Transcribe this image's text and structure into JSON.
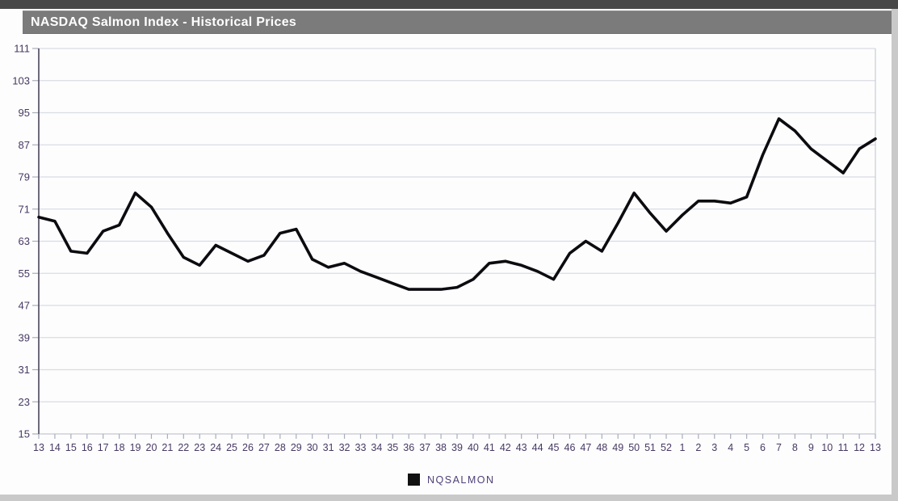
{
  "window": {
    "title": "NASDAQ Salmon Index - Historical Prices"
  },
  "legend": {
    "label": "NQSALMON",
    "swatch_color": "#111111"
  },
  "colors": {
    "line": "#0b0b10",
    "gridline": "#d9dce3",
    "plot_border": "#c9ccd4",
    "y_axis_line": "#4a465a",
    "tick": "#a9adb8",
    "axis_label": "#473963",
    "title_bar_bg": "#7b7b7b",
    "title_text": "#ffffff"
  },
  "chart_data": {
    "type": "line",
    "title": "NASDAQ Salmon Index - Historical Prices",
    "series_name": "NQSALMON",
    "x_labels": [
      "13",
      "14",
      "15",
      "16",
      "17",
      "18",
      "19",
      "20",
      "21",
      "22",
      "23",
      "24",
      "25",
      "26",
      "27",
      "28",
      "29",
      "30",
      "31",
      "32",
      "33",
      "34",
      "35",
      "36",
      "37",
      "38",
      "39",
      "40",
      "41",
      "42",
      "43",
      "44",
      "45",
      "46",
      "47",
      "48",
      "49",
      "50",
      "51",
      "52",
      "1",
      "2",
      "3",
      "4",
      "5",
      "6",
      "7",
      "8",
      "9",
      "10",
      "11",
      "12",
      "13"
    ],
    "values": [
      69,
      68,
      60.5,
      60,
      65.5,
      67,
      75,
      71.5,
      65,
      59,
      57,
      62,
      60,
      58,
      59.5,
      65,
      66,
      58.5,
      56.5,
      57.5,
      55.5,
      54,
      52.5,
      51,
      51,
      51,
      51.5,
      53.5,
      57.5,
      58,
      57,
      55.5,
      53.5,
      60,
      63,
      60.5,
      67.5,
      75,
      70,
      65.5,
      69.5,
      73,
      73,
      72.5,
      74,
      84.5,
      93.5,
      90.5,
      86,
      83,
      80,
      86,
      88.5
    ],
    "y_ticks": [
      111,
      103,
      95,
      87,
      79,
      71,
      63,
      55,
      47,
      39,
      31,
      23,
      15
    ],
    "ylim": [
      15,
      111
    ],
    "grid": true,
    "legend_position": "bottom-center"
  }
}
